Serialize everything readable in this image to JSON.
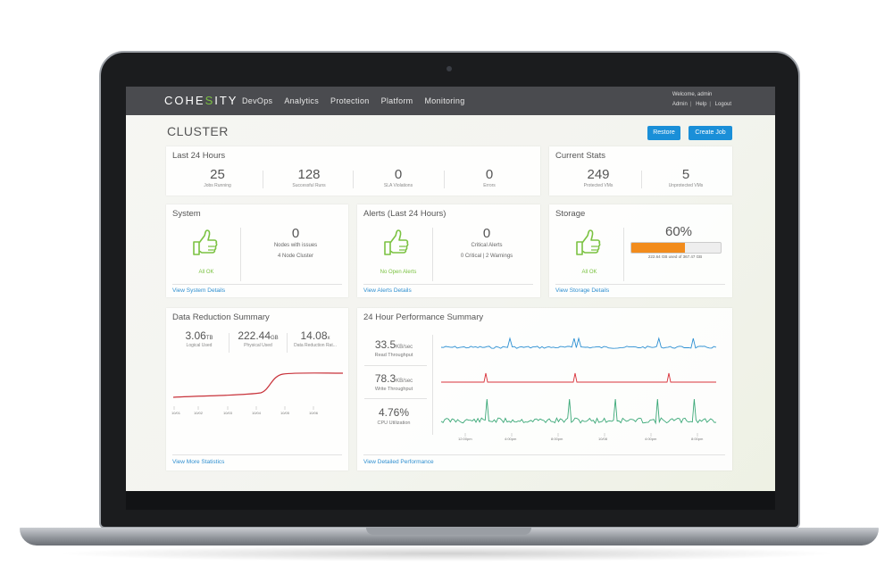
{
  "nav": {
    "logo_pre": "COHE",
    "logo_mid": "S",
    "logo_post": "ITY",
    "items": [
      "DevOps",
      "Analytics",
      "Protection",
      "Platform",
      "Monitoring"
    ],
    "welcome": "Welcome, admin",
    "links": [
      "Admin",
      "Help",
      "Logout"
    ]
  },
  "page": {
    "title": "CLUSTER",
    "restore_label": "Restore",
    "create_job_label": "Create Job"
  },
  "last24": {
    "title": "Last 24 Hours",
    "stats": [
      {
        "value": "25",
        "label": "Jobs Running"
      },
      {
        "value": "128",
        "label": "Successful Runs"
      },
      {
        "value": "0",
        "label": "SLA Violations"
      },
      {
        "value": "0",
        "label": "Errors"
      }
    ]
  },
  "current": {
    "title": "Current Stats",
    "stats": [
      {
        "value": "249",
        "label": "Protected VMs"
      },
      {
        "value": "5",
        "label": "Unprotected VMs"
      }
    ]
  },
  "system": {
    "title": "System",
    "status": "All OK",
    "value": "0",
    "label": "Nodes with issues",
    "sub": "4 Node Cluster",
    "link": "View System Details"
  },
  "alerts": {
    "title": "Alerts (Last 24 Hours)",
    "status": "No Open Alerts",
    "value": "0",
    "label": "Critical Alerts",
    "sub": "0 Critical | 2 Warnings",
    "link": "View Alerts Details"
  },
  "storage": {
    "title": "Storage",
    "status": "All OK",
    "percent_text": "60%",
    "fill": 0.6,
    "used": "222.64 GB used of 367.47 GB",
    "link": "View Storage Details"
  },
  "reduction": {
    "title": "Data Reduction Summary",
    "stats": [
      {
        "value": "3.06",
        "unit": "TB",
        "label": "Logical Used"
      },
      {
        "value": "222.44",
        "unit": "GB",
        "label": "Physical Used"
      },
      {
        "value": "14.08",
        "unit": "x",
        "label": "Data Reduction Rat..."
      }
    ],
    "x_ticks": [
      "10/01",
      "10/02",
      "10/03",
      "10/04",
      "10/05",
      "10/06"
    ],
    "link": "View More Statistics"
  },
  "perf": {
    "title": "24 Hour Performance Summary",
    "metrics": [
      {
        "value": "33.5",
        "unit": "KB/sec",
        "label": "Read Throughput",
        "color": "#2b8fd2"
      },
      {
        "value": "78.3",
        "unit": "KB/sec",
        "label": "Write Throughput",
        "color": "#d9323a"
      },
      {
        "value": "4.76%",
        "unit": "",
        "label": "CPU Utilization",
        "color": "#3aa877"
      }
    ],
    "x_ticks": [
      "12:00pm",
      "4:00pm",
      "8:00pm",
      "10/08",
      "4:00pm",
      "8:00pm"
    ],
    "link": "View Detailed Performance"
  },
  "colors": {
    "accent": "#1a8fd8",
    "ok_green": "#7bc242",
    "storage_bar": "#f28c1c",
    "reduction_line": "#c8323a"
  }
}
